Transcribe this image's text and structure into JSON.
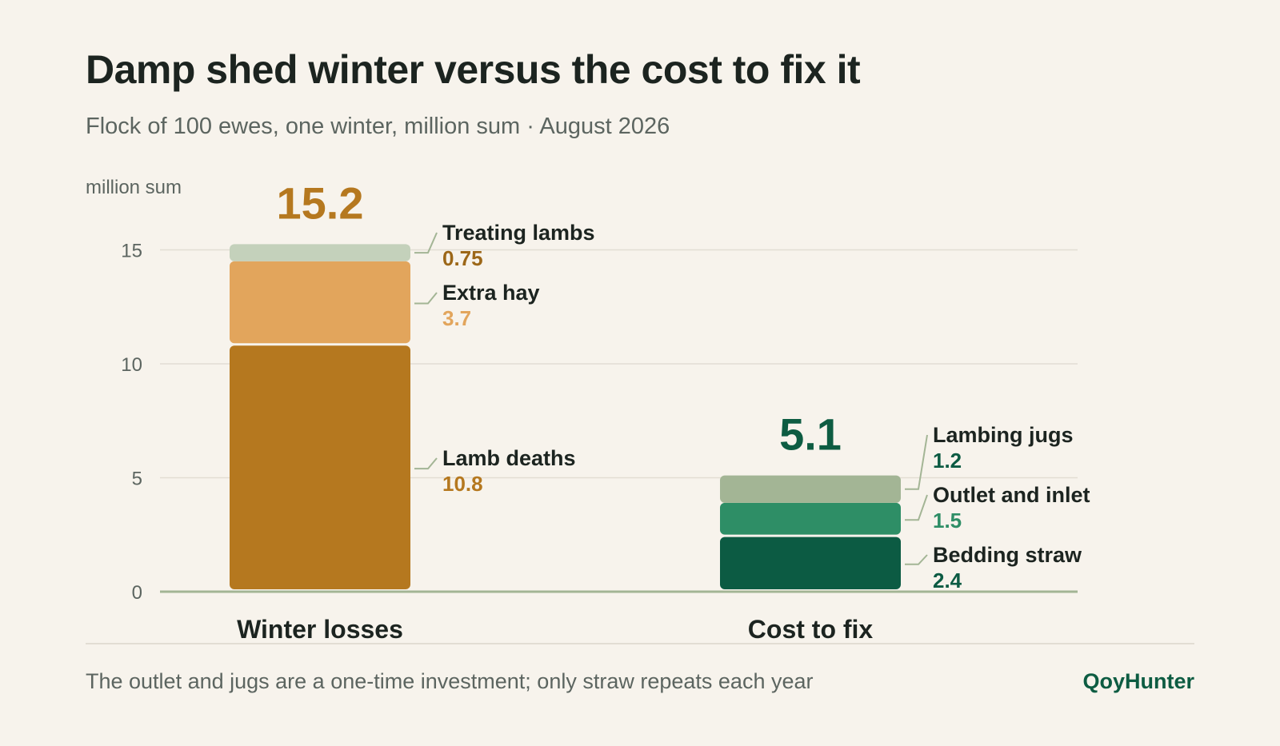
{
  "header": {
    "title": "Damp shed winter versus the cost to fix it",
    "subtitle": "Flock of 100 ewes, one winter, million sum · August 2026"
  },
  "footer": {
    "note": "The outlet and jugs are a one-time investment; only straw repeats each year",
    "brand": "QoyHunter"
  },
  "chart_data": {
    "type": "bar",
    "stacked": true,
    "title": "Damp shed winter versus the cost to fix it",
    "subtitle": "Flock of 100 ewes, one winter, million sum · August 2026",
    "ylabel": "million sum",
    "xlabel": "",
    "ylim": [
      0,
      16
    ],
    "yticks": [
      0,
      5,
      10,
      15
    ],
    "grid": true,
    "legend": "inline labels beside segments",
    "categories": [
      "Winter losses",
      "Cost to fix"
    ],
    "stacks": [
      {
        "category": "Winter losses",
        "total_label": "15.2",
        "total_color": "#b5781f",
        "segments": [
          {
            "name": "Lamb deaths",
            "value": 10.8,
            "value_label": "10.8",
            "color": "#b5781f",
            "label_color": "#b5781f"
          },
          {
            "name": "Extra hay",
            "value": 3.7,
            "value_label": "3.7",
            "color": "#e2a55c",
            "label_color": "#e2a55c"
          },
          {
            "name": "Treating lambs",
            "value": 0.75,
            "value_label": "0.75",
            "color": "#c4d1bb",
            "label_color": "#9c6718"
          }
        ]
      },
      {
        "category": "Cost to fix",
        "total_label": "5.1",
        "total_color": "#0d5c42",
        "segments": [
          {
            "name": "Bedding straw",
            "value": 2.4,
            "value_label": "2.4",
            "color": "#0c5b43",
            "label_color": "#0c5b43"
          },
          {
            "name": "Outlet and inlet",
            "value": 1.5,
            "value_label": "1.5",
            "color": "#2e8e66",
            "label_color": "#2e8e66"
          },
          {
            "name": "Lambing jugs",
            "value": 1.2,
            "value_label": "1.2",
            "color": "#a3b595",
            "label_color": "#0c5b43"
          }
        ]
      }
    ]
  }
}
